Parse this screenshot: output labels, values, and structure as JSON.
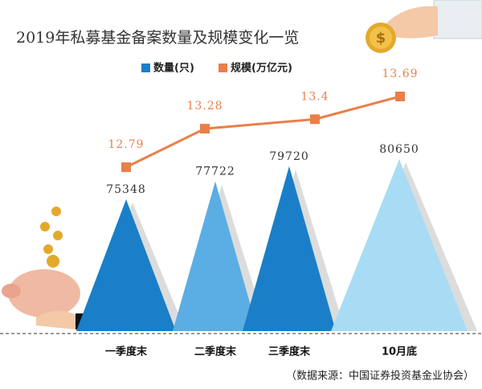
{
  "chart_data": {
    "type": "bar_line",
    "title": "2019年私募基金备案数量及规模变化一览",
    "categories": [
      "一季度末",
      "二季度末",
      "三季度末",
      "10月底"
    ],
    "series": [
      {
        "name": "数量(只)",
        "color": "#1a7fc8",
        "colors": [
          "#1a7fc8",
          "#5aaee3",
          "#1a7fc8",
          "#a8dcf5"
        ],
        "values": [
          75348,
          77722,
          79720,
          80650
        ]
      },
      {
        "name": "规模(万亿元)",
        "color": "#e8804a",
        "values": [
          12.79,
          13.28,
          13.4,
          13.69
        ]
      }
    ],
    "source": "（数据来源：中国证券投资基金业协会）"
  }
}
